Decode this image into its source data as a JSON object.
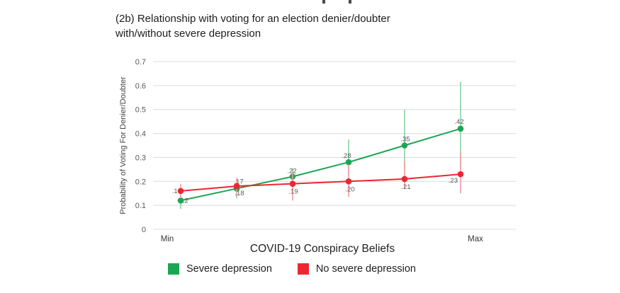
{
  "figure": {
    "title_line1": "(2b) Relationship with voting for an election denier/doubter",
    "title_line2": "with/without severe depression"
  },
  "chart_data": {
    "type": "line",
    "title": "(2b) Relationship with voting for an election denier/doubter with/without severe depression",
    "xlabel": "COVID-19 Conspiracy Beliefs",
    "ylabel": "Probability of Voting For Denier/Doubter",
    "x_tick_labels": [
      "Min",
      "Max"
    ],
    "x": [
      1,
      2,
      3,
      4,
      5,
      6
    ],
    "ylim": [
      0,
      0.7
    ],
    "yticks": [
      {
        "value": 0,
        "label": "0"
      },
      {
        "value": 0.1,
        "label": "0.1"
      },
      {
        "value": 0.2,
        "label": "0.2"
      },
      {
        "value": 0.3,
        "label": "0.3"
      },
      {
        "value": 0.4,
        "label": "0.4"
      },
      {
        "value": 0.5,
        "label": "0.5"
      },
      {
        "value": 0.6,
        "label": "0.6"
      },
      {
        "value": 0.7,
        "label": "0.7"
      }
    ],
    "grid": "horizontal-light-gray",
    "legend_position": "bottom",
    "series": [
      {
        "name": "Severe depression",
        "color": "#1CA653",
        "ci_color": "#86D2A4",
        "values": [
          0.12,
          0.17,
          0.22,
          0.28,
          0.35,
          0.42
        ],
        "point_labels": [
          ".12",
          ".17",
          ".22",
          ".28",
          ".35",
          ".42"
        ],
        "ci": [
          [
            0.085,
            0.15
          ],
          [
            0.13,
            0.21
          ],
          [
            0.165,
            0.255
          ],
          [
            0.225,
            0.375
          ],
          [
            0.25,
            0.5
          ],
          [
            0.25,
            0.615
          ]
        ]
      },
      {
        "name": "No severe depression",
        "color": "#ED2633",
        "ci_color": "#F59BA1",
        "values": [
          0.16,
          0.18,
          0.19,
          0.2,
          0.21,
          0.23
        ],
        "point_labels": [
          ".16",
          ".18",
          ".19",
          ".20",
          ".21",
          ".23"
        ],
        "ci": [
          [
            0.13,
            0.19
          ],
          [
            0.14,
            0.215
          ],
          [
            0.12,
            0.235
          ],
          [
            0.135,
            0.27
          ],
          [
            0.17,
            0.285
          ],
          [
            0.15,
            0.32
          ]
        ]
      }
    ]
  },
  "legend": {
    "items": [
      {
        "label": "Severe depression",
        "color": "#1CA653"
      },
      {
        "label": "No severe depression",
        "color": "#ED2633"
      }
    ]
  }
}
